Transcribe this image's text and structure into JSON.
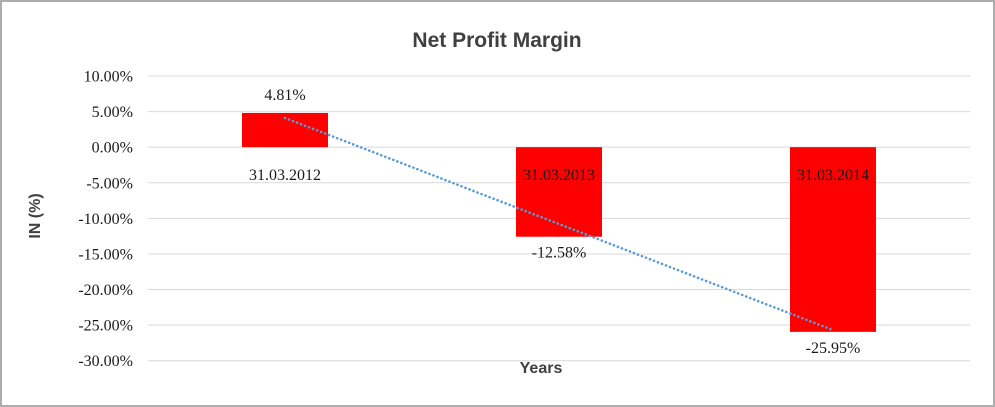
{
  "window": {
    "background": "#FFFFFF",
    "border_color": "#ADADAD"
  },
  "chart_data": {
    "type": "bar",
    "title": "Net Profit Margin",
    "xlabel": "Years",
    "ylabel": "IN (%)",
    "categories": [
      "31.03.2012",
      "31.03.2013",
      "31.03.2014"
    ],
    "series": [
      {
        "name": "Net Profit Margin",
        "values": [
          4.81,
          -12.58,
          -25.95
        ]
      }
    ],
    "data_labels": [
      "4.81%",
      "-12.58%",
      "-25.95%"
    ],
    "ylim": [
      -30,
      10
    ],
    "yticks": [
      10,
      5,
      0,
      -5,
      -10,
      -15,
      -20,
      -25,
      -30
    ],
    "ytick_labels": [
      "10.00%",
      "5.00%",
      "0.00%",
      "-5.00%",
      "-10.00%",
      "-15.00%",
      "-20.00%",
      "-25.00%",
      "-30.00%"
    ],
    "grid": true,
    "legend": false,
    "bar_color": "#FF0000",
    "grid_color": "#D9D9D9",
    "text_color": "#1A1A1A",
    "title_color": "#404040",
    "trendline": {
      "type": "linear",
      "style": "dotted",
      "color": "#5B9BD5",
      "start": {
        "category_index": 0,
        "value": 4.1
      },
      "end": {
        "category_index": 2,
        "value": -25.7
      }
    }
  }
}
